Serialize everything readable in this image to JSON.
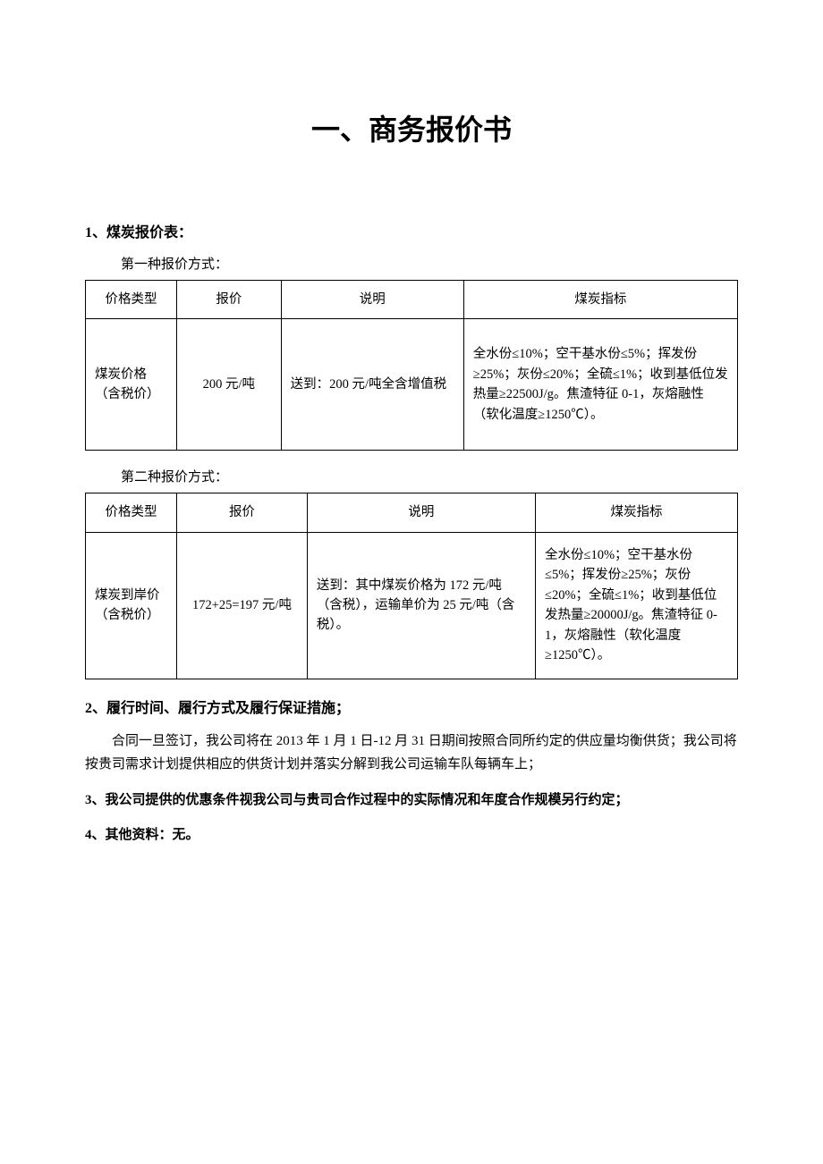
{
  "title": "一、商务报价书",
  "section1_heading": "1、煤炭报价表：",
  "method1_caption": "第一种报价方式：",
  "method2_caption": "第二种报价方式：",
  "headers": {
    "price_type": "价格类型",
    "quote": "报价",
    "desc": "说明",
    "spec": "煤炭指标"
  },
  "table1": {
    "row": {
      "price_type": "煤炭价格（含税价）",
      "quote": "200 元/吨",
      "desc": "送到：200 元/吨全含增值税",
      "spec": "全水份≤10%；空干基水份≤5%；挥发份≥25%；灰份≤20%；全硫≤1%；收到基低位发热量≥22500J/g。焦渣特征 0-1，灰熔融性（软化温度≥1250℃）。"
    }
  },
  "table2": {
    "row": {
      "price_type": "煤炭到岸价（含税价）",
      "quote": "172+25=197 元/吨",
      "desc": "送到：其中煤炭价格为 172 元/吨（含税），运输单价为 25 元/吨（含税）。",
      "spec": "全水份≤10%；空干基水份≤5%；挥发份≥25%；灰份≤20%；全硫≤1%；收到基低位发热量≥20000J/g。焦渣特征 0-1，灰熔融性（软化温度≥1250℃）。"
    }
  },
  "section2_heading": "2、履行时间、履行方式及履行保证措施；",
  "section2_body": "合同一旦签订，我公司将在 2013 年 1 月 1 日-12 月 31 日期间按照合同所约定的供应量均衡供货；我公司将按贵司需求计划提供相应的供货计划并落实分解到我公司运输车队每辆车上；",
  "section3": "3、我公司提供的优惠条件视我公司与贵司合作过程中的实际情况和年度合作规模另行约定；",
  "section4": "4、其他资料：无。"
}
